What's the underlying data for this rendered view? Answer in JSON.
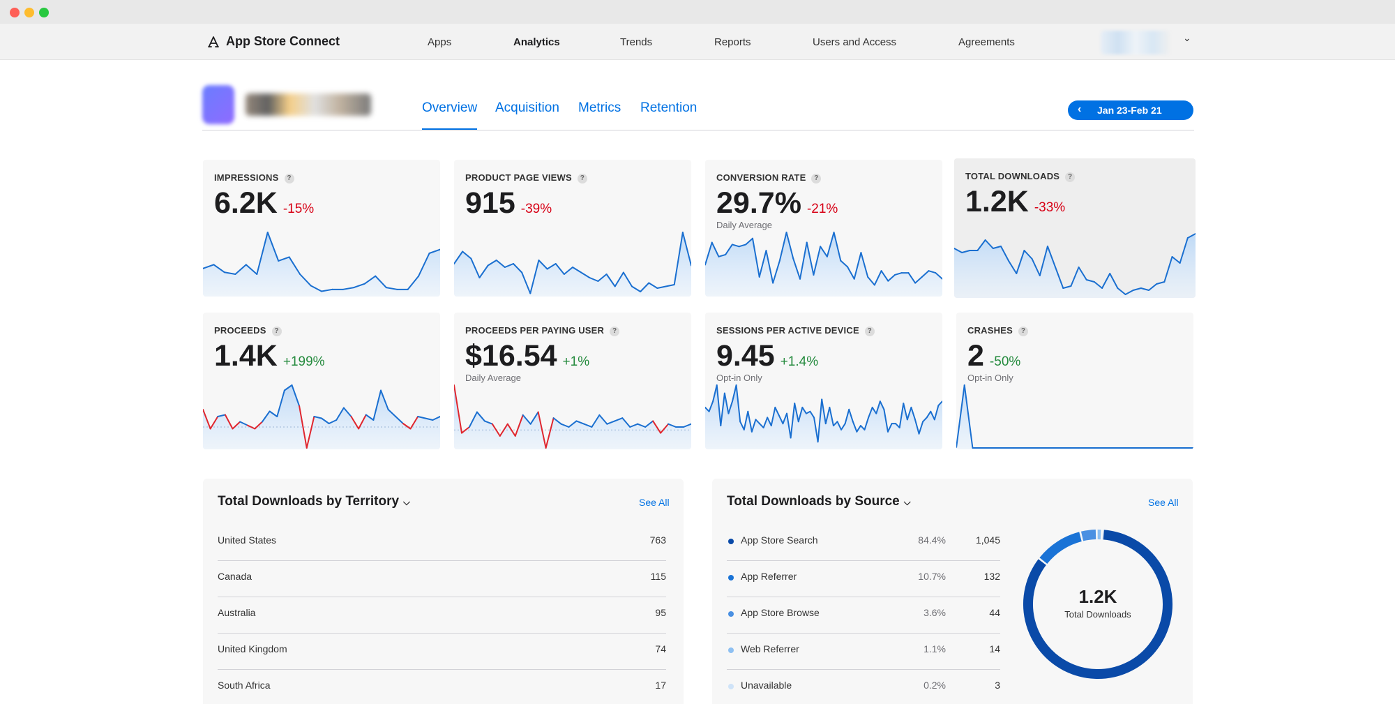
{
  "window": {
    "controls": [
      "close",
      "minimize",
      "maximize"
    ]
  },
  "topnav": {
    "brand": "App Store Connect",
    "brand_icon": "app-store-icon",
    "items": [
      {
        "label": "Apps",
        "active": false
      },
      {
        "label": "Analytics",
        "active": true
      },
      {
        "label": "Trends",
        "active": false
      },
      {
        "label": "Reports",
        "active": false
      },
      {
        "label": "Users and Access",
        "active": false
      },
      {
        "label": "Agreements",
        "active": false
      }
    ],
    "account_icon": "chevron-down-icon"
  },
  "app_header": {
    "tabs": [
      {
        "label": "Overview",
        "active": true
      },
      {
        "label": "Acquisition",
        "active": false
      },
      {
        "label": "Metrics",
        "active": false
      },
      {
        "label": "Retention",
        "active": false
      }
    ],
    "date_range": "Jan 23-Feb 21",
    "date_prev_icon": "chevron-left-icon"
  },
  "metrics": [
    {
      "label": "IMPRESSIONS",
      "value": "6.2K",
      "change": "-15%",
      "trend": "neg",
      "sub": "",
      "selected": false,
      "series": [
        14,
        16,
        12,
        11,
        16,
        11,
        33,
        18,
        20,
        11,
        5,
        2,
        3,
        3,
        4,
        6,
        10,
        4,
        3,
        3,
        10,
        22,
        24
      ]
    },
    {
      "label": "PRODUCT PAGE VIEWS",
      "value": "915",
      "change": "-39%",
      "trend": "neg",
      "sub": "",
      "selected": false,
      "series": [
        18,
        25,
        21,
        10,
        17,
        20,
        16,
        18,
        13,
        1,
        20,
        15,
        18,
        12,
        16,
        13,
        10,
        8,
        12,
        5,
        13,
        5,
        2,
        7,
        4,
        5,
        6,
        36,
        17
      ]
    },
    {
      "label": "CONVERSION RATE",
      "value": "29.7%",
      "change": "-21%",
      "trend": "neg",
      "sub": "Daily Average",
      "selected": false,
      "series": [
        15,
        26,
        19,
        20,
        25,
        24,
        25,
        28,
        9,
        22,
        6,
        17,
        31,
        18,
        8,
        26,
        10,
        24,
        19,
        31,
        17,
        14,
        8,
        21,
        9,
        5,
        12,
        7,
        10,
        11,
        11,
        6,
        9,
        12,
        11,
        8
      ]
    },
    {
      "label": "TOTAL DOWNLOADS",
      "value": "1.2K",
      "change": "-33%",
      "trend": "neg",
      "sub": "",
      "selected": true,
      "series": [
        23,
        21,
        22,
        22,
        27,
        23,
        24,
        17,
        11,
        22,
        18,
        10,
        24,
        14,
        4,
        5,
        14,
        8,
        7,
        4,
        11,
        4,
        1,
        3,
        4,
        3,
        6,
        7,
        19,
        16,
        28,
        30
      ]
    },
    {
      "label": "PROCEEDS",
      "value": "1.4K",
      "change": "+199%",
      "trend": "pos",
      "sub": "",
      "selected": false,
      "series": [
        10,
        -1,
        6,
        7,
        -1,
        3,
        1,
        -1,
        3,
        9,
        6,
        21,
        24,
        12,
        -12,
        6,
        5,
        2,
        4,
        11,
        6,
        -1,
        7,
        4,
        21,
        10,
        6,
        2,
        -1,
        6,
        5,
        4,
        6
      ]
    },
    {
      "label": "PROCEEDS PER PAYING USER",
      "value": "$16.54",
      "change": "+1%",
      "trend": "pos",
      "sub": "Daily Average",
      "selected": false,
      "series": [
        15,
        -1,
        1,
        6,
        3,
        2,
        -2,
        2,
        -2,
        5,
        2,
        6,
        -6,
        4,
        2,
        1,
        3,
        2,
        1,
        5,
        2,
        3,
        4,
        1,
        2,
        1,
        3,
        -1,
        2,
        1,
        1,
        2
      ]
    },
    {
      "label": "SESSIONS PER ACTIVE DEVICE",
      "value": "9.45",
      "change": "+1.4%",
      "trend": "pos",
      "sub": "Opt-in Only",
      "selected": false,
      "series": [
        20,
        18,
        23,
        31,
        11,
        27,
        17,
        23,
        31,
        13,
        9,
        18,
        8,
        14,
        12,
        10,
        15,
        11,
        20,
        16,
        12,
        17,
        5,
        22,
        13,
        20,
        17,
        18,
        15,
        3,
        24,
        12,
        20,
        11,
        13,
        9,
        12,
        19,
        13,
        8,
        11,
        9,
        15,
        20,
        17,
        23,
        19,
        8,
        12,
        12,
        10,
        22,
        14,
        20,
        14,
        7,
        13,
        15,
        18,
        14,
        21,
        23
      ]
    },
    {
      "label": "CRASHES",
      "value": "2",
      "change": "-50%",
      "trend": "pos",
      "sub": "Opt-in Only",
      "selected": false,
      "series": [
        0,
        1,
        0,
        0,
        0,
        0,
        0,
        0,
        0,
        0,
        0,
        0,
        0,
        0,
        0,
        0,
        0,
        0,
        0,
        0,
        0,
        0,
        0,
        0,
        0,
        0,
        0,
        0,
        0,
        0
      ]
    }
  ],
  "territory": {
    "title": "Total Downloads by Territory",
    "see_all": "See All",
    "rows": [
      {
        "name": "United States",
        "value": "763"
      },
      {
        "name": "Canada",
        "value": "115"
      },
      {
        "name": "Australia",
        "value": "95"
      },
      {
        "name": "United Kingdom",
        "value": "74"
      },
      {
        "name": "South Africa",
        "value": "17"
      }
    ]
  },
  "source": {
    "title": "Total Downloads by Source",
    "see_all": "See All",
    "rows": [
      {
        "name": "App Store Search",
        "pct": "84.4%",
        "value": "1,045",
        "color": "#0a4aa8"
      },
      {
        "name": "App Referrer",
        "pct": "10.7%",
        "value": "132",
        "color": "#1a73d6"
      },
      {
        "name": "App Store Browse",
        "pct": "3.6%",
        "value": "44",
        "color": "#4a90e2"
      },
      {
        "name": "Web Referrer",
        "pct": "1.1%",
        "value": "14",
        "color": "#8ec0f2"
      },
      {
        "name": "Unavailable",
        "pct": "0.2%",
        "value": "3",
        "color": "#cfe3f8"
      }
    ],
    "donut_total": "1.2K",
    "donut_label": "Total Downloads"
  }
}
